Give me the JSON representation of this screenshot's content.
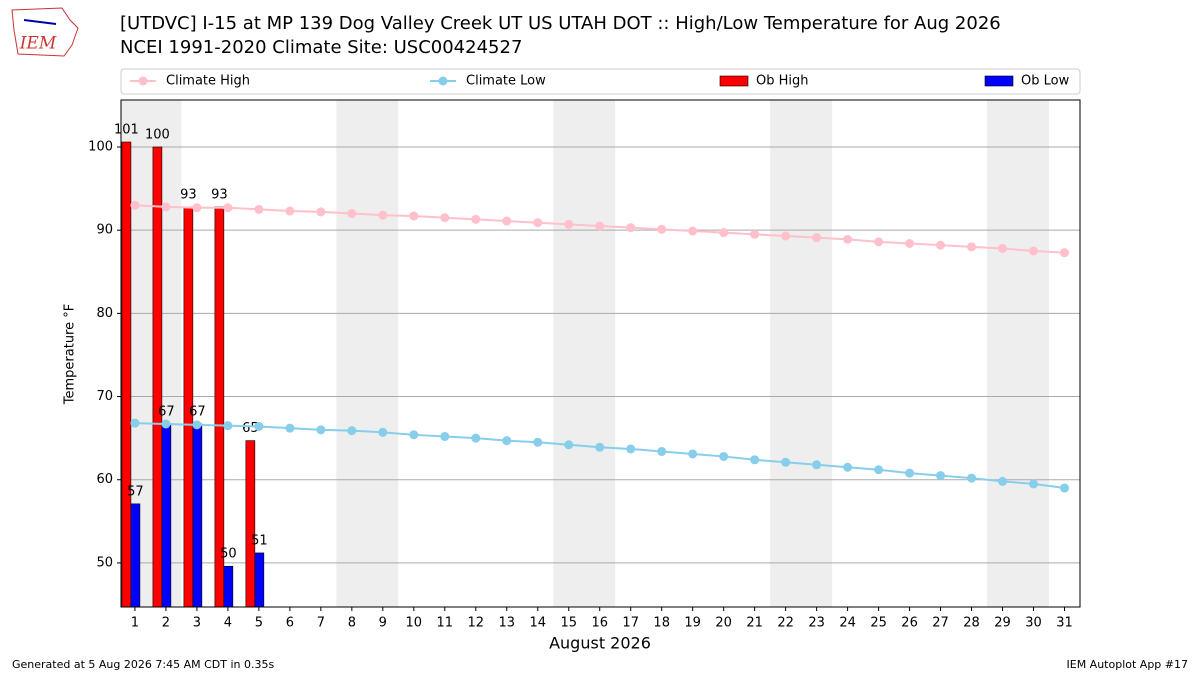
{
  "chart_data": {
    "type": "bar_line",
    "title": "[UTDVC] I-15 at MP 139 Dog Valley Creek  UT US UTAH DOT :: High/Low Temperature for Aug 2026",
    "subtitle": "NCEI 1991-2020 Climate Site: USC00424527",
    "xlabel": "August 2026",
    "ylabel": "Temperature °F",
    "logo": "IEM",
    "footer_left": "Generated at 5 Aug 2026 7:45 AM CDT in 0.35s",
    "footer_right": "IEM Autoplot App #17",
    "x": [
      1,
      2,
      3,
      4,
      5,
      6,
      7,
      8,
      9,
      10,
      11,
      12,
      13,
      14,
      15,
      16,
      17,
      18,
      19,
      20,
      21,
      22,
      23,
      24,
      25,
      26,
      27,
      28,
      29,
      30,
      31
    ],
    "xlim": [
      0.55,
      31.5
    ],
    "xticks": [
      1,
      2,
      3,
      4,
      5,
      6,
      7,
      8,
      9,
      10,
      11,
      12,
      13,
      14,
      15,
      16,
      17,
      18,
      19,
      20,
      21,
      22,
      23,
      24,
      25,
      26,
      27,
      28,
      29,
      30,
      31
    ],
    "ylim": [
      44.7,
      105.65
    ],
    "yticks": [
      50,
      60,
      70,
      80,
      90,
      100
    ],
    "grid": true,
    "legend": "top",
    "weekend_bands": [
      [
        0.55,
        2.5
      ],
      [
        7.5,
        9.5
      ],
      [
        14.5,
        16.5
      ],
      [
        21.5,
        23.5
      ],
      [
        28.5,
        30.5
      ]
    ],
    "series": [
      {
        "name": "Climate High",
        "kind": "line",
        "color": "#ffc0cb",
        "values": [
          93.0,
          92.8,
          92.7,
          92.7,
          92.5,
          92.3,
          92.2,
          92.0,
          91.8,
          91.7,
          91.5,
          91.3,
          91.1,
          90.9,
          90.7,
          90.5,
          90.3,
          90.1,
          89.9,
          89.7,
          89.5,
          89.3,
          89.1,
          88.9,
          88.6,
          88.4,
          88.2,
          88.0,
          87.8,
          87.5,
          87.3
        ]
      },
      {
        "name": "Climate Low",
        "kind": "line",
        "color": "#87ceeb",
        "values": [
          66.8,
          66.7,
          66.6,
          66.5,
          66.4,
          66.2,
          66.0,
          65.9,
          65.7,
          65.4,
          65.2,
          65.0,
          64.7,
          64.5,
          64.2,
          63.9,
          63.7,
          63.4,
          63.1,
          62.8,
          62.4,
          62.1,
          61.8,
          61.5,
          61.2,
          60.8,
          60.5,
          60.2,
          59.8,
          59.5,
          59.0
        ]
      },
      {
        "name": "Ob High",
        "kind": "bar",
        "color": "#ff0000",
        "values": [
          100.6,
          100.0,
          92.8,
          92.8,
          64.7,
          null,
          null,
          null,
          null,
          null,
          null,
          null,
          null,
          null,
          null,
          null,
          null,
          null,
          null,
          null,
          null,
          null,
          null,
          null,
          null,
          null,
          null,
          null,
          null,
          null,
          null
        ],
        "value_labels": [
          "101",
          "100",
          "93",
          "93",
          "65",
          null,
          null,
          null,
          null,
          null,
          null,
          null,
          null,
          null,
          null,
          null,
          null,
          null,
          null,
          null,
          null,
          null,
          null,
          null,
          null,
          null,
          null,
          null,
          null,
          null,
          null
        ]
      },
      {
        "name": "Ob Low",
        "kind": "bar",
        "color": "#0000ff",
        "values": [
          57.1,
          66.7,
          66.7,
          49.6,
          51.2,
          null,
          null,
          null,
          null,
          null,
          null,
          null,
          null,
          null,
          null,
          null,
          null,
          null,
          null,
          null,
          null,
          null,
          null,
          null,
          null,
          null,
          null,
          null,
          null,
          null,
          null
        ],
        "value_labels": [
          "57",
          "67",
          "67",
          "50",
          "51",
          null,
          null,
          null,
          null,
          null,
          null,
          null,
          null,
          null,
          null,
          null,
          null,
          null,
          null,
          null,
          null,
          null,
          null,
          null,
          null,
          null,
          null,
          null,
          null,
          null,
          null
        ]
      }
    ]
  }
}
